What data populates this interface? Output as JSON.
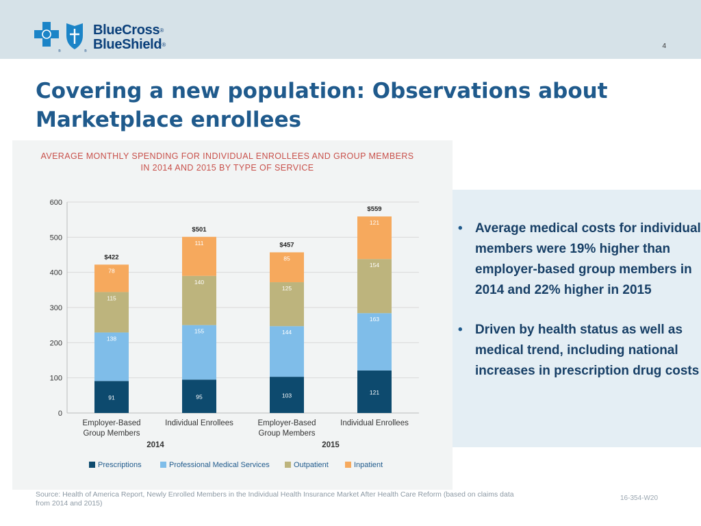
{
  "header": {
    "brand_line1": "BlueCross",
    "brand_line2": "BlueShield",
    "registered_mark": "®",
    "page_number": "4"
  },
  "title": "Covering a new population: Observations about Marketplace enrollees",
  "bullets": [
    "Average medical costs for individual members were 19% higher than employer-based group members in 2014 and 22% higher in 2015",
    "Driven by health status as well as medical trend, including national increases in prescription drug costs"
  ],
  "footer": {
    "source": "Source: Health of America Report, Newly Enrolled Members in the Individual Health Insurance Market After Health Care Reform  (based on claims data from 2014 and 2015)",
    "code": "16-354-W20"
  },
  "colors": {
    "prescriptions": "#0d4a6e",
    "professional": "#7fbde9",
    "outpatient": "#bdb47d",
    "inpatient": "#f6a95d",
    "title_red": "#c8504a"
  },
  "chart_data": {
    "type": "bar",
    "stacked": true,
    "title_line1": "AVERAGE MONTHLY SPENDING FOR INDIVIDUAL ENROLLEES AND GROUP MEMBERS",
    "title_line2": "IN 2014 AND 2015 BY TYPE OF SERVICE",
    "categories": [
      [
        "Employer-Based",
        "Group Members"
      ],
      [
        "Individual Enrollees"
      ],
      [
        "Employer-Based",
        "Group Members"
      ],
      [
        "Individual Enrollees"
      ]
    ],
    "groups": [
      {
        "label": "2014",
        "categories": [
          0,
          1
        ]
      },
      {
        "label": "2015",
        "categories": [
          2,
          3
        ]
      }
    ],
    "totals": [
      "$422",
      "$501",
      "$457",
      "$559"
    ],
    "series": [
      {
        "name": "Prescriptions",
        "color_key": "prescriptions",
        "values": [
          91,
          95,
          103,
          121
        ]
      },
      {
        "name": "Professional Medical Services",
        "color_key": "professional",
        "values": [
          138,
          155,
          144,
          163
        ]
      },
      {
        "name": "Outpatient",
        "color_key": "outpatient",
        "values": [
          115,
          140,
          125,
          154
        ]
      },
      {
        "name": "Inpatient",
        "color_key": "inpatient",
        "values": [
          78,
          111,
          85,
          121
        ]
      }
    ],
    "ylim": [
      0,
      600
    ],
    "yticks": [
      0,
      100,
      200,
      300,
      400,
      500,
      600
    ],
    "grid": true,
    "legend_position": "bottom"
  }
}
